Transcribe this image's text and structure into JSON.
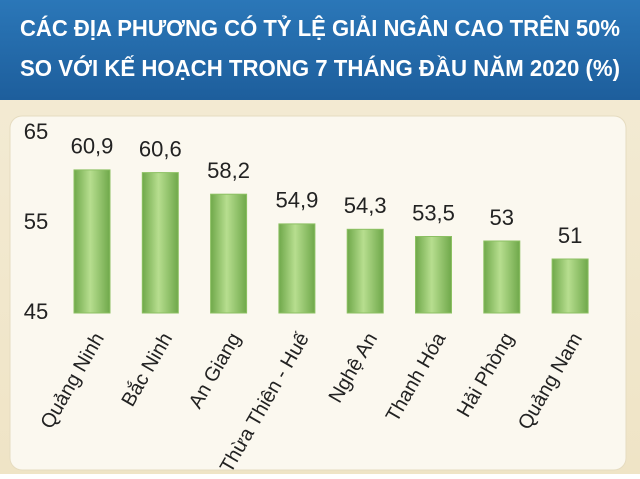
{
  "chart_data": {
    "type": "bar",
    "title": [
      "CÁC ĐỊA PHƯƠNG CÓ TỶ LỆ GIẢI NGÂN CAO TRÊN 50%",
      "SO VỚI KẾ HOẠCH TRONG 7 THÁNG ĐẦU NĂM 2020 (%)"
    ],
    "categories": [
      "Quảng Ninh",
      "Bắc Ninh",
      "An Giang",
      "Thừa Thiên - Huế",
      "Nghệ An",
      "Thanh Hóa",
      "Hải Phòng",
      "Quảng Nam"
    ],
    "values": [
      60.9,
      60.6,
      58.2,
      54.9,
      54.3,
      53.5,
      53,
      51
    ],
    "value_labels": [
      "60,9",
      "60,6",
      "58,2",
      "54,9",
      "54,3",
      "53,5",
      "53",
      "51"
    ],
    "color": "#8cc063",
    "ylim": [
      45,
      65
    ],
    "yticks": [
      45,
      55,
      65
    ],
    "grid": false
  }
}
